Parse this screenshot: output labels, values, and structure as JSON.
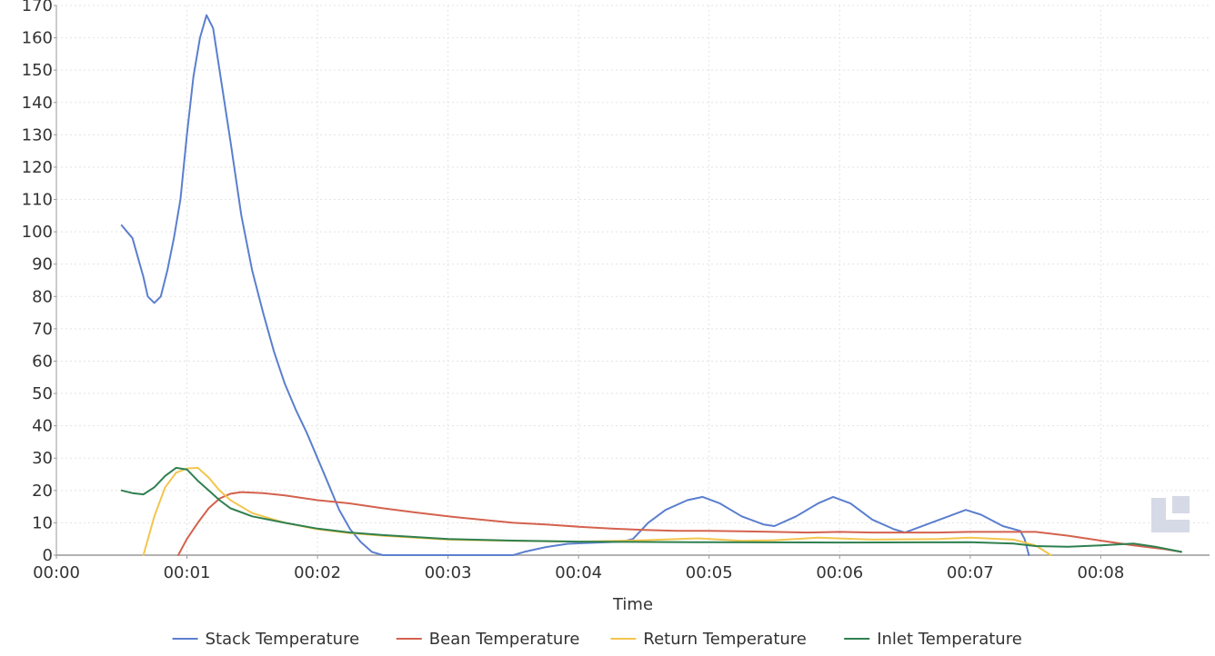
{
  "chart_data": {
    "type": "line",
    "title": "",
    "xlabel": "Time",
    "ylabel": "",
    "xlim": [
      "00:00",
      "00:08:50"
    ],
    "ylim": [
      0,
      170
    ],
    "grid": true,
    "legend_position": "bottom",
    "x_ticks": [
      "00:00",
      "00:01",
      "00:02",
      "00:03",
      "00:04",
      "00:05",
      "00:06",
      "00:07",
      "00:08"
    ],
    "y_ticks": [
      0,
      10,
      20,
      30,
      40,
      50,
      60,
      70,
      80,
      90,
      100,
      110,
      120,
      130,
      140,
      150,
      160,
      170
    ],
    "series": [
      {
        "name": "Stack Temperature",
        "color": "#5b7fce",
        "points": [
          [
            "00:00:30",
            102
          ],
          [
            "00:00:35",
            98
          ],
          [
            "00:00:40",
            86
          ],
          [
            "00:00:42",
            80
          ],
          [
            "00:00:45",
            78
          ],
          [
            "00:00:48",
            80
          ],
          [
            "00:00:51",
            88
          ],
          [
            "00:00:54",
            98
          ],
          [
            "00:00:57",
            110
          ],
          [
            "00:01:00",
            130
          ],
          [
            "00:01:03",
            148
          ],
          [
            "00:01:06",
            160
          ],
          [
            "00:01:09",
            167
          ],
          [
            "00:01:12",
            163
          ],
          [
            "00:01:15",
            150
          ],
          [
            "00:01:20",
            128
          ],
          [
            "00:01:25",
            105
          ],
          [
            "00:01:30",
            88
          ],
          [
            "00:01:35",
            75
          ],
          [
            "00:01:40",
            63
          ],
          [
            "00:01:45",
            53
          ],
          [
            "00:01:50",
            45
          ],
          [
            "00:01:55",
            38
          ],
          [
            "00:02:00",
            30
          ],
          [
            "00:02:05",
            22
          ],
          [
            "00:02:10",
            14
          ],
          [
            "00:02:15",
            8
          ],
          [
            "00:02:20",
            4
          ],
          [
            "00:02:25",
            1
          ],
          [
            "00:02:30",
            0
          ],
          [
            "00:03:30",
            0
          ],
          [
            "00:03:35",
            1
          ],
          [
            "00:03:45",
            2.5
          ],
          [
            "00:03:55",
            3.5
          ],
          [
            "00:04:05",
            3.8
          ],
          [
            "00:04:20",
            4.2
          ],
          [
            "00:04:25",
            5
          ],
          [
            "00:04:32",
            10
          ],
          [
            "00:04:40",
            14
          ],
          [
            "00:04:50",
            17
          ],
          [
            "00:04:57",
            18
          ],
          [
            "00:05:05",
            16
          ],
          [
            "00:05:15",
            12
          ],
          [
            "00:05:25",
            9.5
          ],
          [
            "00:05:30",
            9
          ],
          [
            "00:05:40",
            12
          ],
          [
            "00:05:50",
            16
          ],
          [
            "00:05:57",
            18
          ],
          [
            "00:06:05",
            16
          ],
          [
            "00:06:15",
            11
          ],
          [
            "00:06:25",
            8
          ],
          [
            "00:06:30",
            7
          ],
          [
            "00:06:40",
            9.5
          ],
          [
            "00:06:50",
            12
          ],
          [
            "00:06:58",
            14
          ],
          [
            "00:07:05",
            12.5
          ],
          [
            "00:07:15",
            9
          ],
          [
            "00:07:23",
            7.5
          ],
          [
            "00:07:25",
            5
          ],
          [
            "00:07:27",
            0
          ]
        ]
      },
      {
        "name": "Bean Temperature",
        "color": "#d4624e",
        "points": [
          [
            "00:00:56",
            0
          ],
          [
            "00:01:00",
            5
          ],
          [
            "00:01:05",
            10
          ],
          [
            "00:01:10",
            14.5
          ],
          [
            "00:01:15",
            17.5
          ],
          [
            "00:01:20",
            19
          ],
          [
            "00:01:25",
            19.5
          ],
          [
            "00:01:35",
            19.2
          ],
          [
            "00:01:45",
            18.5
          ],
          [
            "00:02:00",
            17
          ],
          [
            "00:02:15",
            16
          ],
          [
            "00:02:30",
            14.5
          ],
          [
            "00:02:45",
            13.2
          ],
          [
            "00:03:00",
            12
          ],
          [
            "00:03:15",
            11
          ],
          [
            "00:03:30",
            10
          ],
          [
            "00:03:45",
            9.5
          ],
          [
            "00:04:00",
            8.8
          ],
          [
            "00:04:15",
            8.2
          ],
          [
            "00:04:30",
            7.8
          ],
          [
            "00:04:45",
            7.5
          ],
          [
            "00:05:00",
            7.5
          ],
          [
            "00:05:15",
            7.4
          ],
          [
            "00:05:30",
            7.2
          ],
          [
            "00:05:45",
            7
          ],
          [
            "00:06:00",
            7.2
          ],
          [
            "00:06:15",
            7
          ],
          [
            "00:06:30",
            7
          ],
          [
            "00:06:45",
            7
          ],
          [
            "00:07:00",
            7.2
          ],
          [
            "00:07:15",
            7.2
          ],
          [
            "00:07:30",
            7.2
          ],
          [
            "00:07:45",
            6
          ],
          [
            "00:08:00",
            4.5
          ],
          [
            "00:08:15",
            3
          ],
          [
            "00:08:30",
            1.8
          ],
          [
            "00:08:37",
            1
          ]
        ]
      },
      {
        "name": "Return Temperature",
        "color": "#f2c54d",
        "points": [
          [
            "00:00:40",
            0
          ],
          [
            "00:00:45",
            12
          ],
          [
            "00:00:50",
            21
          ],
          [
            "00:00:55",
            25.5
          ],
          [
            "00:01:00",
            26.8
          ],
          [
            "00:01:05",
            27
          ],
          [
            "00:01:10",
            24
          ],
          [
            "00:01:15",
            20
          ],
          [
            "00:01:20",
            17
          ],
          [
            "00:01:30",
            13
          ],
          [
            "00:01:45",
            10
          ],
          [
            "00:02:00",
            8
          ],
          [
            "00:02:15",
            6.8
          ],
          [
            "00:02:30",
            6
          ],
          [
            "00:03:00",
            4.8
          ],
          [
            "00:03:30",
            4.4
          ],
          [
            "00:04:00",
            4.2
          ],
          [
            "00:04:30",
            4.6
          ],
          [
            "00:04:55",
            5.2
          ],
          [
            "00:05:15",
            4.4
          ],
          [
            "00:05:30",
            4.6
          ],
          [
            "00:05:50",
            5.4
          ],
          [
            "00:06:15",
            4.8
          ],
          [
            "00:06:45",
            5
          ],
          [
            "00:07:00",
            5.4
          ],
          [
            "00:07:20",
            4.8
          ],
          [
            "00:07:30",
            3
          ],
          [
            "00:07:37",
            0
          ]
        ]
      },
      {
        "name": "Inlet Temperature",
        "color": "#2f8050",
        "points": [
          [
            "00:00:30",
            20
          ],
          [
            "00:00:35",
            19.2
          ],
          [
            "00:00:40",
            18.8
          ],
          [
            "00:00:45",
            21
          ],
          [
            "00:00:50",
            24.5
          ],
          [
            "00:00:55",
            27
          ],
          [
            "00:01:00",
            26.5
          ],
          [
            "00:01:05",
            23
          ],
          [
            "00:01:10",
            20
          ],
          [
            "00:01:15",
            17
          ],
          [
            "00:01:20",
            14.5
          ],
          [
            "00:01:30",
            12
          ],
          [
            "00:01:45",
            10
          ],
          [
            "00:02:00",
            8.2
          ],
          [
            "00:02:15",
            7
          ],
          [
            "00:02:30",
            6.2
          ],
          [
            "00:03:00",
            5
          ],
          [
            "00:03:30",
            4.5
          ],
          [
            "00:04:00",
            4.2
          ],
          [
            "00:05:00",
            4
          ],
          [
            "00:06:00",
            3.9
          ],
          [
            "00:07:00",
            4
          ],
          [
            "00:07:20",
            3.6
          ],
          [
            "00:07:30",
            2.8
          ],
          [
            "00:07:45",
            2.6
          ],
          [
            "00:08:00",
            3
          ],
          [
            "00:08:15",
            3.6
          ],
          [
            "00:08:25",
            2.6
          ],
          [
            "00:08:37",
            1
          ]
        ]
      }
    ]
  }
}
